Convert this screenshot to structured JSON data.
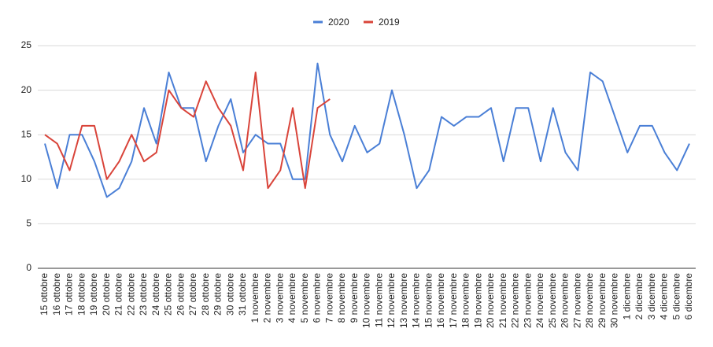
{
  "chart_data": {
    "type": "line",
    "categories": [
      "15 ottobre",
      "16 ottobre",
      "17 ottobre",
      "18 ottobre",
      "19 ottobre",
      "20 ottobre",
      "21 ottobre",
      "22 ottobre",
      "23 ottobre",
      "24 ottobre",
      "25 ottobre",
      "26 ottobre",
      "27 ottobre",
      "28 ottobre",
      "29 ottobre",
      "30 ottobre",
      "31 ottobre",
      "1 novembre",
      "2 novembre",
      "3 novembre",
      "4 novembre",
      "5 novembre",
      "6 novembre",
      "7 novembre",
      "8 novembre",
      "9 novembre",
      "10 novembre",
      "11 novembre",
      "12 novembre",
      "13 novembre",
      "14 novembre",
      "15 novembre",
      "16 novembre",
      "17 novembre",
      "18 novembre",
      "19 novembre",
      "20 novembre",
      "21 novembre",
      "22 novembre",
      "23 novembre",
      "24 novembre",
      "25 novembre",
      "26 novembre",
      "27 novembre",
      "28 novembre",
      "29 novembre",
      "30 novembre",
      "1 dicembre",
      "2 dicembre",
      "3 dicembre",
      "4 dicembre",
      "5 dicembre",
      "6 dicembre"
    ],
    "series": [
      {
        "name": "2020",
        "color": "#4a7fd6",
        "values": [
          14,
          9,
          15,
          15,
          12,
          8,
          9,
          12,
          18,
          14,
          22,
          18,
          18,
          12,
          16,
          19,
          13,
          15,
          14,
          14,
          10,
          10,
          23,
          15,
          12,
          16,
          13,
          14,
          20,
          15,
          9,
          11,
          17,
          16,
          17,
          17,
          18,
          12,
          18,
          18,
          12,
          18,
          13,
          11,
          22,
          21,
          17,
          13,
          16,
          16,
          13,
          11,
          14
        ]
      },
      {
        "name": "2019",
        "color": "#d9443a",
        "values": [
          15,
          14,
          11,
          16,
          16,
          10,
          12,
          15,
          12,
          13,
          20,
          18,
          17,
          21,
          18,
          16,
          11,
          22,
          9,
          11,
          18,
          9,
          18,
          19,
          null,
          null,
          null,
          null,
          null,
          null,
          null,
          null,
          null,
          null,
          null,
          null,
          null,
          null,
          null,
          null,
          null,
          null,
          null,
          null,
          null,
          null,
          null,
          null,
          null,
          null,
          null,
          null,
          null
        ]
      }
    ],
    "ylim": [
      0,
      25
    ],
    "yticks": [
      0,
      5,
      10,
      15,
      20,
      25
    ],
    "grid": true,
    "legend": "top"
  }
}
